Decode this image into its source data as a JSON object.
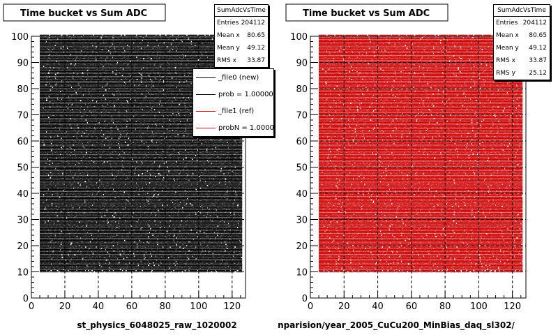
{
  "pads": [
    {
      "title": "Time bucket vs Sum ADC",
      "xlabel": "st_physics_6048025_raw_1020002",
      "stats": {
        "name": "SumAdcVsTime",
        "entries_label": "Entries",
        "entries": "204112",
        "mean_x_label": "Mean x",
        "mean_x": "80.65",
        "mean_y_label": "Mean y",
        "mean_y": "49.12",
        "rms_x_label": "RMS x",
        "rms_x": "33.87"
      },
      "legend": [
        {
          "label": "_file0 (new)",
          "color": "#000000"
        },
        {
          "label": "prob = 1.000000",
          "color": "#000000"
        },
        {
          "label": "_file1 (ref)",
          "color": "#cc0000"
        },
        {
          "label": "probN = 1.000000",
          "color": "#cc0000"
        }
      ]
    },
    {
      "title": "Time bucket vs Sum ADC",
      "xlabel": "nparision/year_2005_CuCu200_MinBias_daq_sl302/",
      "stats": {
        "name": "SumAdcVsTime",
        "entries_label": "Entries",
        "entries": "204112",
        "mean_x_label": "Mean x",
        "mean_x": "80.65",
        "mean_y_label": "Mean y",
        "mean_y": "49.12",
        "rms_x_label": "RMS x",
        "rms_x": "33.87",
        "rms_y_label": "RMS y",
        "rms_y": "25.12"
      }
    }
  ],
  "chart_data": [
    {
      "type": "scatter",
      "title": "Time bucket vs Sum ADC",
      "xlabel": "st_physics_6048025_raw_1020002",
      "xlim": [
        0,
        128
      ],
      "ylim": [
        0,
        100
      ],
      "xticks": [
        0,
        20,
        40,
        60,
        80,
        100,
        120
      ],
      "yticks": [
        0,
        10,
        20,
        30,
        40,
        50,
        60,
        70,
        80,
        90,
        100
      ],
      "grid": true,
      "color": "#000000",
      "entries": 204112,
      "mean_x": 80.65,
      "mean_y": 49.12,
      "rms_x": 33.87,
      "data_extent": {
        "x": [
          5,
          126
        ],
        "y": [
          10,
          99
        ]
      }
    },
    {
      "type": "scatter",
      "title": "Time bucket vs Sum ADC",
      "xlabel": "nparision/year_2005_CuCu200_MinBias_daq_sl302/",
      "xlim": [
        0,
        128
      ],
      "ylim": [
        0,
        100
      ],
      "xticks": [
        0,
        20,
        40,
        60,
        80,
        100,
        120
      ],
      "yticks": [
        0,
        10,
        20,
        30,
        40,
        50,
        60,
        70,
        80,
        90,
        100
      ],
      "grid": true,
      "color": "#cc0000",
      "entries": 204112,
      "mean_x": 80.65,
      "mean_y": 49.12,
      "rms_x": 33.87,
      "rms_y": 25.12,
      "data_extent": {
        "x": [
          5,
          126
        ],
        "y": [
          10,
          99
        ]
      }
    }
  ]
}
